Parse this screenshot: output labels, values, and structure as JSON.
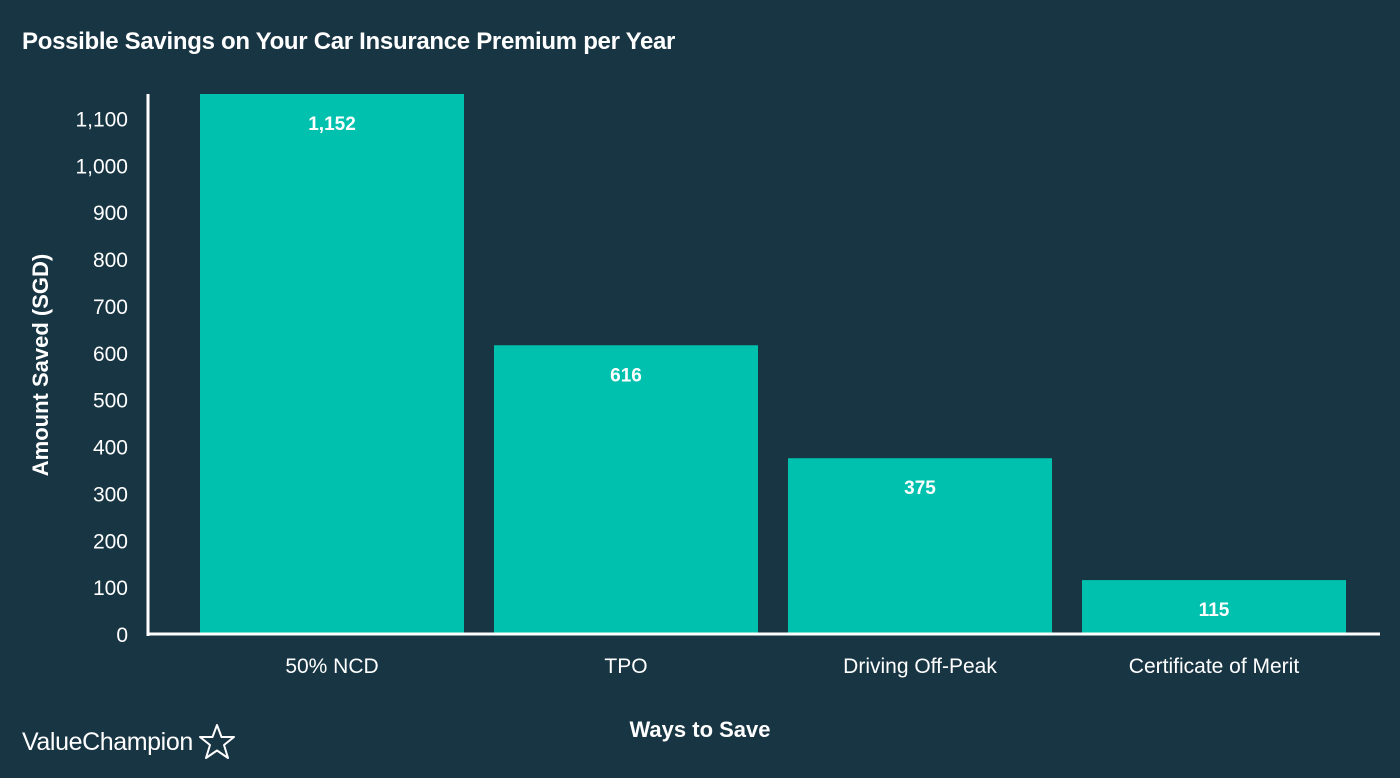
{
  "chart_data": {
    "type": "bar",
    "title": "Possible Savings on Your Car Insurance Premium per Year",
    "xlabel": "Ways to Save",
    "ylabel": "Amount Saved (SGD)",
    "categories": [
      "50% NCD",
      "TPO",
      "Driving Off-Peak",
      "Certificate of Merit"
    ],
    "values": [
      1152,
      616,
      375,
      115
    ],
    "data_labels": [
      "1,152",
      "616",
      "375",
      "115"
    ],
    "ylim": [
      0,
      1160
    ],
    "yticks": [
      0,
      100,
      200,
      300,
      400,
      500,
      600,
      700,
      800,
      900,
      1000,
      1100
    ],
    "ytick_labels": [
      "0",
      "100",
      "200",
      "300",
      "400",
      "500",
      "600",
      "700",
      "800",
      "900",
      "1,000",
      "1,100"
    ],
    "grid": false,
    "legend": "none",
    "bar_color": "#00C1AE",
    "axis_color": "#FFFFFF",
    "background": "#183543"
  },
  "brand": {
    "name": "ValueChampion",
    "icon": "star-outline-icon"
  }
}
